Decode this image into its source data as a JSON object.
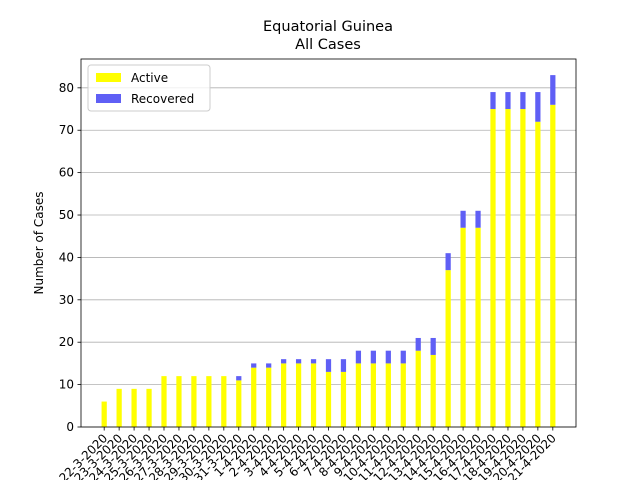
{
  "chart_data": {
    "type": "stacked_bar",
    "title": "Equatorial Guinea",
    "subtitle": "All Cases",
    "y_label": "Number of Cases",
    "categories": [
      "22-3-2020",
      "23-3-2020",
      "24-3-2020",
      "25-3-2020",
      "26-3-2020",
      "27-3-2020",
      "28-3-2020",
      "29-3-2020",
      "30-3-2020",
      "31-3-2020",
      "1-4-2020",
      "2-4-2020",
      "3-4-2020",
      "4-4-2020",
      "5-4-2020",
      "6-4-2020",
      "7-4-2020",
      "8-4-2020",
      "9-4-2020",
      "10-4-2020",
      "11-4-2020",
      "12-4-2020",
      "13-4-2020",
      "14-4-2020",
      "15-4-2020",
      "16-4-2020",
      "17-4-2020",
      "18-4-2020",
      "19-4-2020",
      "20-4-2020",
      "21-4-2020"
    ],
    "series": [
      {
        "name": "Active",
        "color": "#ffff00",
        "values": [
          6,
          9,
          9,
          9,
          12,
          12,
          12,
          12,
          12,
          11,
          14,
          14,
          15,
          15,
          15,
          13,
          13,
          15,
          15,
          15,
          15,
          18,
          17,
          37,
          47,
          47,
          75,
          75,
          75,
          72,
          76
        ]
      },
      {
        "name": "Recovered",
        "color": "#5f5ff5",
        "values": [
          0,
          0,
          0,
          0,
          0,
          0,
          0,
          0,
          0,
          1,
          1,
          1,
          1,
          1,
          1,
          3,
          3,
          3,
          3,
          3,
          3,
          3,
          4,
          4,
          4,
          4,
          4,
          4,
          4,
          7,
          7
        ]
      }
    ],
    "ylim": [
      0,
      86.8
    ],
    "yticks": [
      0,
      10,
      20,
      30,
      40,
      50,
      60,
      70,
      80
    ],
    "grid": true,
    "legend": "upper left"
  }
}
